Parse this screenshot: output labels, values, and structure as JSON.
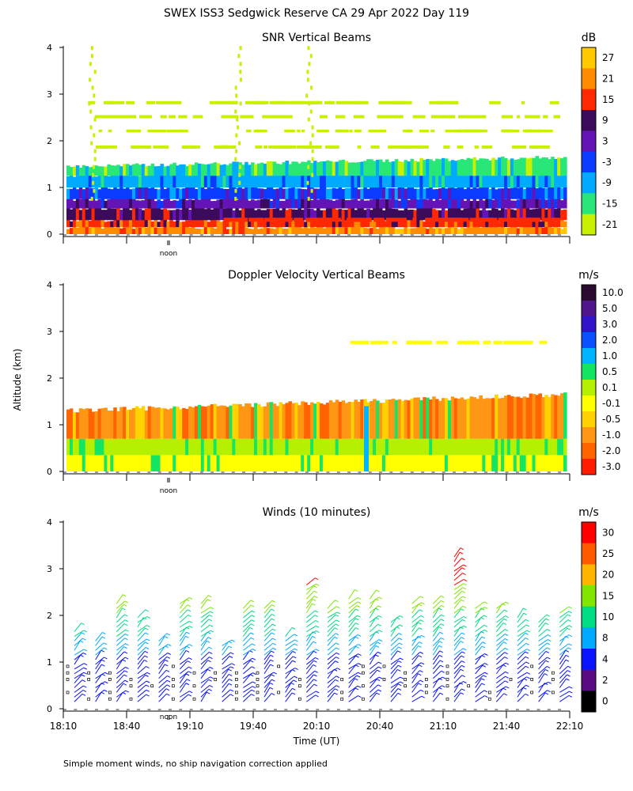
{
  "figure": {
    "title": "SWEX ISS3 Sedgwick Reserve CA  29 Apr 2022 Day 119",
    "footnote": "Simple moment winds, no ship navigation correction applied",
    "xlabel": "Time (UT)",
    "ylabel": "Altitude (km)",
    "noon_label": "noon"
  },
  "chart_data": [
    {
      "type": "heatmap",
      "title": "SNR Vertical Beams",
      "unit": "dB",
      "xlabel": "Time (UT)",
      "ylabel": "Altitude (km)",
      "ylim": [
        0,
        4
      ],
      "yticks": [
        "0",
        "1",
        "2",
        "3",
        "4"
      ],
      "xlim": [
        "18:10",
        "22:10"
      ],
      "colorbar": {
        "labels": [
          "27",
          "21",
          "15",
          "9",
          "3",
          "-3",
          "-9",
          "-15",
          "-21"
        ],
        "colors": [
          "#ffc800",
          "#ff8c00",
          "#ff2800",
          "#3c0a5a",
          "#6414b4",
          "#0a3cff",
          "#00aaff",
          "#28e678",
          "#c8f000"
        ]
      },
      "layers": [
        {
          "from_km": 0.0,
          "to_km": 0.15,
          "snr_db": 21
        },
        {
          "from_km": 0.15,
          "to_km": 0.3,
          "snr_db": 15
        },
        {
          "from_km": 0.3,
          "to_km": 0.55,
          "snr_db": 9
        },
        {
          "from_km": 0.55,
          "to_km": 0.75,
          "snr_db": 3
        },
        {
          "from_km": 0.75,
          "to_km": 1.0,
          "snr_db": -3
        },
        {
          "from_km": 1.0,
          "to_km": 1.25,
          "snr_db": -9
        },
        {
          "from_km": 1.25,
          "to_km": 1.45,
          "snr_db": -15
        }
      ]
    },
    {
      "type": "heatmap",
      "title": "Doppler Velocity Vertical Beams",
      "unit": "m/s",
      "xlabel": "Time (UT)",
      "ylabel": "Altitude (km)",
      "ylim": [
        0,
        4
      ],
      "yticks": [
        "0",
        "1",
        "2",
        "3",
        "4"
      ],
      "xlim": [
        "18:10",
        "22:10"
      ],
      "colorbar": {
        "labels": [
          "10.0",
          "5.0",
          "3.0",
          "2.0",
          "1.0",
          "0.5",
          "0.1",
          "-0.1",
          "-0.5",
          "-1.0",
          "-2.0",
          "-3.0"
        ],
        "colors": [
          "#2a0a2e",
          "#50148c",
          "#3214c8",
          "#0a50ff",
          "#00b4ff",
          "#14e664",
          "#b4f000",
          "#ffff00",
          "#ffd200",
          "#ff9614",
          "#ff6400",
          "#ff1e00"
        ]
      },
      "layers": [
        {
          "from_km": 0.0,
          "to_km": 0.35,
          "velocity_ms": -0.1
        },
        {
          "from_km": 0.35,
          "to_km": 0.7,
          "velocity_ms": 0.1
        },
        {
          "from_km": 0.7,
          "to_km": 1.3,
          "velocity_ms": -1.0
        }
      ]
    },
    {
      "type": "scatter",
      "title": "Winds (10 minutes)",
      "unit": "m/s",
      "xlabel": "Time (UT)",
      "ylabel": "Altitude (km)",
      "ylim": [
        0,
        4
      ],
      "yticks": [
        "0",
        "1",
        "2",
        "3",
        "4"
      ],
      "xticks": [
        "18:10",
        "18:40",
        "19:10",
        "19:40",
        "20:10",
        "20:40",
        "21:10",
        "21:40",
        "22:10"
      ],
      "colorbar": {
        "labels": [
          "30",
          "25",
          "20",
          "15",
          "10",
          "8",
          "4",
          "2",
          "0"
        ],
        "colors": [
          "#ff0000",
          "#ff5a00",
          "#ffb400",
          "#82e600",
          "#00dc82",
          "#00aaff",
          "#0a14ff",
          "#5a0a82",
          "#000000"
        ]
      },
      "times": [
        "18:10",
        "18:20",
        "18:30",
        "18:40",
        "18:50",
        "19:00",
        "19:10",
        "19:20",
        "19:30",
        "19:40",
        "19:50",
        "20:00",
        "20:10",
        "20:20",
        "20:30",
        "20:40",
        "20:50",
        "21:00",
        "21:10",
        "21:20",
        "21:30",
        "21:40",
        "21:50",
        "22:00"
      ],
      "profile_top_km": [
        1.7,
        1.5,
        2.3,
        2.0,
        1.5,
        2.3,
        2.3,
        1.4,
        2.2,
        2.2,
        1.6,
        2.7,
        2.2,
        2.4,
        2.4,
        1.9,
        2.3,
        2.3,
        3.3,
        2.2,
        2.2,
        2.0,
        1.9,
        2.1
      ],
      "wind_speed_ms": [
        {
          "altitude_km": 0.3,
          "speed": 3
        },
        {
          "altitude_km": 0.8,
          "speed": 5
        },
        {
          "altitude_km": 1.3,
          "speed": 8
        },
        {
          "altitude_km": 1.8,
          "speed": 10
        },
        {
          "altitude_km": 2.3,
          "speed": 15
        },
        {
          "altitude_km": 3.0,
          "speed": 28
        }
      ]
    }
  ]
}
